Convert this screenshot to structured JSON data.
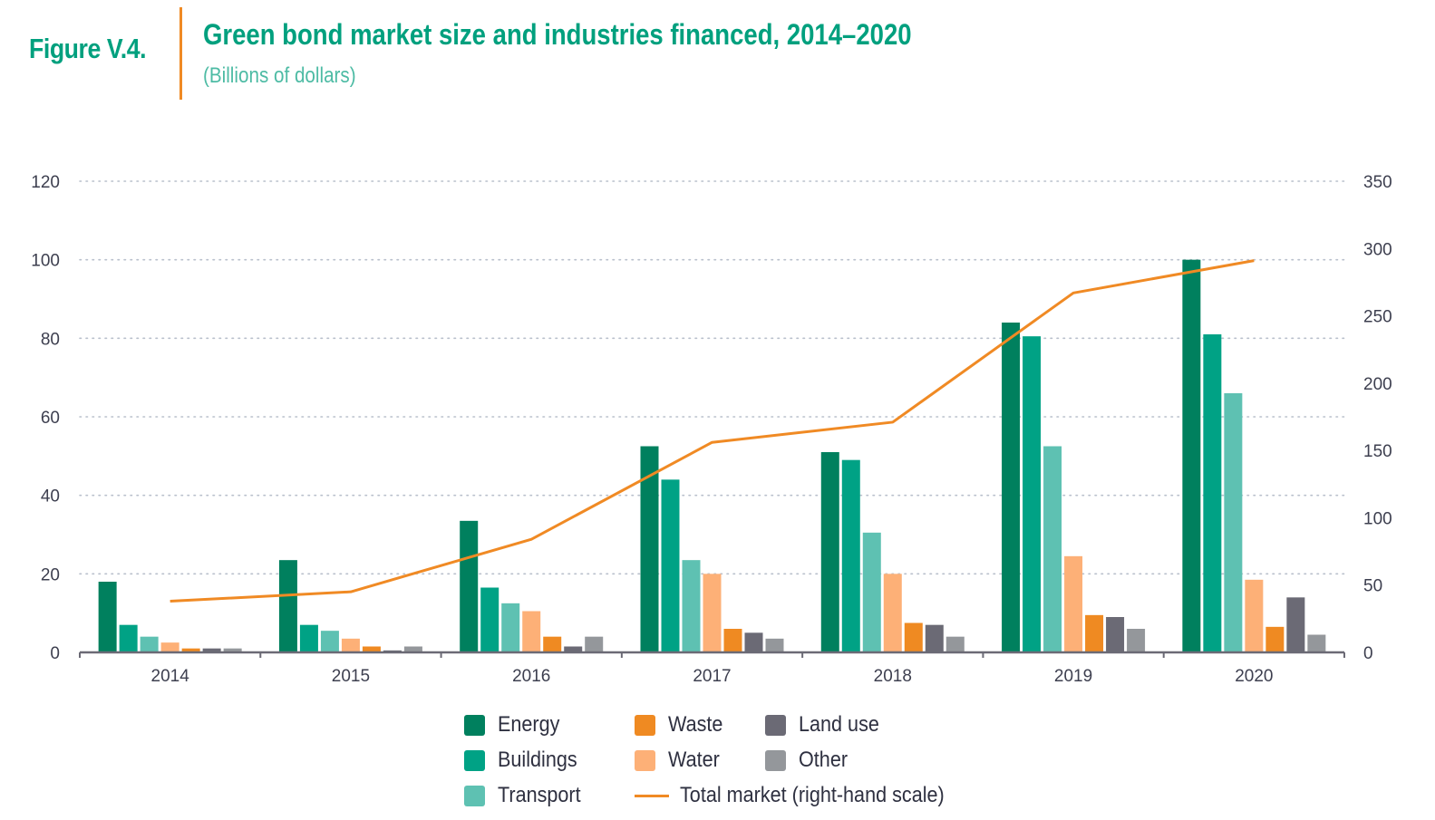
{
  "header": {
    "figure_label": "Figure V.4.",
    "title": "Green bond market size and industries financed, 2014–2020",
    "subtitle": "(Billions of dollars)"
  },
  "colors": {
    "Energy": "#00805e",
    "Buildings": "#00a285",
    "Transport": "#5ec1b2",
    "Water": "#fdb077",
    "Waste": "#ef8a22",
    "Land use": "#6b6a75",
    "Other": "#94979b",
    "Total market": "#f08a24",
    "title": "#00a07e",
    "accent_divider": "#f08a24"
  },
  "chart_data": {
    "type": "bar",
    "title": "Green bond market size and industries financed, 2014–2020",
    "subtitle": "(Billions of dollars)",
    "xlabel": "",
    "ylabel": "Billions of dollars",
    "categories": [
      "2014",
      "2015",
      "2016",
      "2017",
      "2018",
      "2019",
      "2020"
    ],
    "ylim": [
      0,
      120
    ],
    "yticks": [
      0,
      20,
      40,
      60,
      80,
      100,
      120
    ],
    "y2lim": [
      0,
      350
    ],
    "y2ticks": [
      0,
      50,
      100,
      150,
      200,
      250,
      300,
      350
    ],
    "grid": true,
    "series": [
      {
        "name": "Energy",
        "type": "bar",
        "axis": "left",
        "values": [
          18,
          23.5,
          33.5,
          52.5,
          51,
          84,
          100
        ]
      },
      {
        "name": "Buildings",
        "type": "bar",
        "axis": "left",
        "values": [
          7,
          7,
          16.5,
          44,
          49,
          80.5,
          81
        ]
      },
      {
        "name": "Transport",
        "type": "bar",
        "axis": "left",
        "values": [
          4,
          5.5,
          12.5,
          23.5,
          30.5,
          52.5,
          66
        ]
      },
      {
        "name": "Water",
        "type": "bar",
        "axis": "left",
        "values": [
          2.5,
          3.5,
          10.5,
          20,
          20,
          24.5,
          18.5
        ]
      },
      {
        "name": "Waste",
        "type": "bar",
        "axis": "left",
        "values": [
          1,
          1.5,
          4,
          6,
          7.5,
          9.5,
          6.5
        ]
      },
      {
        "name": "Land use",
        "type": "bar",
        "axis": "left",
        "values": [
          1,
          0.5,
          1.5,
          5,
          7,
          9,
          14
        ]
      },
      {
        "name": "Other",
        "type": "bar",
        "axis": "left",
        "values": [
          1,
          1.5,
          4,
          3.5,
          4,
          6,
          4.5
        ]
      },
      {
        "name": "Total market (right-hand scale)",
        "type": "line",
        "axis": "right",
        "values": [
          38,
          45,
          84,
          156,
          171,
          267,
          291
        ]
      }
    ],
    "legend": {
      "position": "bottom",
      "items": [
        {
          "label": "Energy",
          "kind": "swatch",
          "color_key": "Energy"
        },
        {
          "label": "Buildings",
          "kind": "swatch",
          "color_key": "Buildings"
        },
        {
          "label": "Transport",
          "kind": "swatch",
          "color_key": "Transport"
        },
        {
          "label": "Waste",
          "kind": "swatch",
          "color_key": "Waste"
        },
        {
          "label": "Water",
          "kind": "swatch",
          "color_key": "Water"
        },
        {
          "label": "Total market (right-hand scale)",
          "kind": "line",
          "color_key": "Total market"
        },
        {
          "label": "Land use",
          "kind": "swatch",
          "color_key": "Land use"
        },
        {
          "label": "Other",
          "kind": "swatch",
          "color_key": "Other"
        }
      ]
    }
  }
}
